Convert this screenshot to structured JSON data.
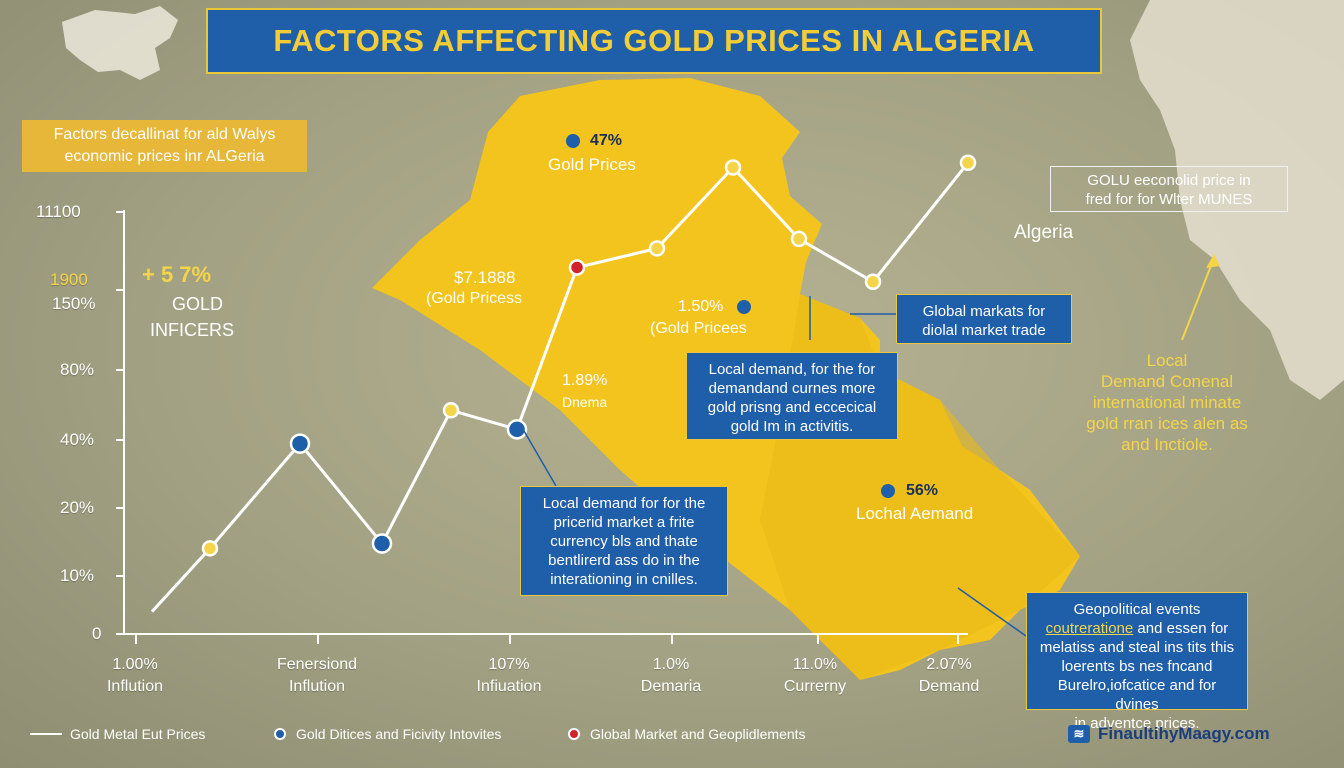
{
  "title": "FACTORS AFFECTING GOLD PRICES IN ALGERIA",
  "subtitle_lines": [
    "Factors decallinat for ald Walys",
    "economic prices inr ALGeria"
  ],
  "colors": {
    "background": "#a7a586",
    "map_yellow": "#f2c41d",
    "accent_blue": "#1f5ea8",
    "gold_text": "#f4d54a",
    "marker_red": "#d2232a"
  },
  "chart_data": {
    "type": "line",
    "y_tick_labels": [
      "11100",
      "1900",
      "150%",
      "80%",
      "40%",
      "20%",
      "10%",
      "0"
    ],
    "categories": [
      {
        "value": "1.00%",
        "label": "Inflution"
      },
      {
        "value": "Fenersiond",
        "label": "Inflution"
      },
      {
        "value": "107%",
        "label": "Infiuation"
      },
      {
        "value": "1.0%",
        "label": "Demaria"
      },
      {
        "value": "11.0%",
        "label": "Currerny"
      },
      {
        "value": "2.07%",
        "label": "Demand"
      }
    ],
    "series_y_levels": [
      0.11,
      0.18,
      0.4,
      0.19,
      0.47,
      0.43,
      0.77,
      0.81,
      0.98,
      0.83,
      0.74,
      0.99
    ],
    "markers": [
      "none",
      "gold",
      "blue",
      "blue",
      "gold",
      "blue",
      "red",
      "gold",
      "gold",
      "gold",
      "gold",
      "gold"
    ],
    "legend": [
      {
        "label": "Gold Metal Eut Prices",
        "marker": "line"
      },
      {
        "label": "Gold Ditices and Ficivity Intovites",
        "marker": "blue"
      },
      {
        "label": "Global Market and Geoplidlements",
        "marker": "red"
      }
    ],
    "grid": false
  },
  "annotations": {
    "left_gold": {
      "percent": "+  5 7%",
      "line1": "GOLD",
      "line2": "INFICERS"
    },
    "gold_prices_top": {
      "value": "47%",
      "label": "Gold Prices"
    },
    "gold_prices_mid": {
      "value": "$7.1888",
      "label": "(Gold Pricess"
    },
    "gold_prices_right": {
      "value": "1.50%",
      "label": "(Gold Pricees"
    },
    "dnema": {
      "value": "1.89%",
      "label": "Dnema"
    },
    "local_aemand": {
      "value": "56%",
      "label": "Lochal Aemand"
    },
    "algeria": "Algeria"
  },
  "boxes": {
    "global_markets": [
      "Global markats for",
      "diolal market trade"
    ],
    "local_demand_upper": [
      "Local demand, for the for",
      "demandand curnes more",
      "gold prisng and eccecical",
      "gold Im in activitis."
    ],
    "local_demand_lower": [
      "Local demand for for the",
      "pricerid market a frite",
      "currency bls and thate",
      "bentlirerd ass do in the",
      "interationing in cnilles."
    ],
    "geopolitical": [
      "Geopolitical events",
      "coutrerationе and essen for",
      "melatiss and steal ins tits this",
      "loerents bs nes fncand",
      "Burelro,iofcatice and for dvines",
      "in adventce prices."
    ],
    "top_right": [
      "GOLU eeconolid price in",
      "fred for for Wlter MUNES"
    ]
  },
  "geopolitical_highlight": "coutrerationе",
  "right_text": [
    "Local",
    "Demand Conenal",
    "international minate",
    "gold rran ices alen as",
    "and Inctiole."
  ],
  "brand": "FinaultihyMaagy.com"
}
